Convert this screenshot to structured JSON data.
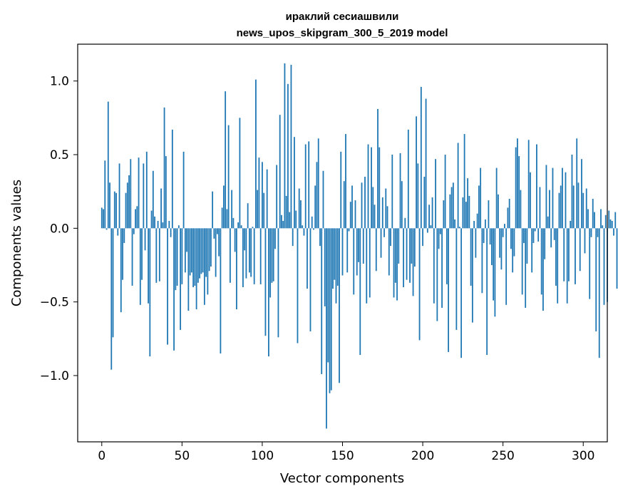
{
  "chart_data": {
    "type": "bar",
    "title": "ираклий сесиашвили",
    "subtitle": "news_upos_skipgram_300_5_2019 model",
    "xlabel": "Vector components",
    "ylabel": "Components values",
    "xlim": [
      -15,
      315
    ],
    "ylim": [
      -1.45,
      1.25
    ],
    "xticks": [
      0,
      50,
      100,
      150,
      200,
      250,
      300
    ],
    "yticks": [
      -1.0,
      -0.5,
      0.0,
      0.5,
      1.0
    ],
    "ytick_labels": [
      "−1.0",
      "−0.5",
      "0.0",
      "0.5",
      "1.0"
    ],
    "bar_color": "#1f77b4",
    "values": [
      0.14,
      0.13,
      0.46,
      -0.01,
      0.86,
      0.31,
      -0.96,
      -0.74,
      0.25,
      0.24,
      -0.05,
      0.44,
      -0.57,
      -0.35,
      -0.1,
      0.24,
      0.31,
      0.36,
      0.47,
      -0.39,
      -0.04,
      0.13,
      0.15,
      0.48,
      -0.52,
      -0.35,
      0.44,
      -0.15,
      0.52,
      -0.51,
      -0.87,
      0.12,
      0.39,
      0.08,
      -0.37,
      0.05,
      -0.36,
      0.27,
      0.04,
      0.82,
      0.49,
      -0.79,
      0.05,
      -0.06,
      0.67,
      -0.83,
      -0.42,
      -0.39,
      0.02,
      -0.69,
      -0.38,
      0.52,
      -0.3,
      -0.16,
      -0.56,
      -0.32,
      -0.3,
      -0.4,
      -0.39,
      -0.55,
      -0.37,
      -0.34,
      -0.31,
      -0.3,
      -0.52,
      -0.33,
      -0.45,
      -0.29,
      -0.26,
      0.25,
      -0.07,
      -0.33,
      -0.04,
      -0.19,
      -0.85,
      0.14,
      0.29,
      0.93,
      0.13,
      0.7,
      -0.37,
      0.26,
      0.07,
      -0.16,
      -0.55,
      0.04,
      0.75,
      0.02,
      -0.4,
      -0.15,
      -0.34,
      0.17,
      -0.3,
      -0.33,
      0.01,
      -0.38,
      1.01,
      0.26,
      0.48,
      -0.38,
      0.45,
      0.24,
      -0.73,
      0.4,
      -0.87,
      -0.47,
      -0.37,
      -0.36,
      -0.14,
      0.43,
      -0.74,
      0.77,
      0.09,
      0.05,
      1.12,
      0.22,
      0.98,
      0.11,
      1.11,
      -0.12,
      0.62,
      0.12,
      -0.78,
      0.27,
      0.19,
      0.02,
      -0.05,
      0.57,
      -0.41,
      0.59,
      -0.7,
      0.08,
      -0.01,
      0.29,
      0.45,
      0.61,
      -0.12,
      -0.99,
      0.39,
      -0.53,
      -1.36,
      -0.91,
      -1.12,
      -1.1,
      -0.41,
      -0.35,
      -0.51,
      -0.39,
      -1.05,
      0.52,
      -0.32,
      0.32,
      0.64,
      -0.3,
      -0.02,
      0.18,
      0.29,
      -0.45,
      0.19,
      -0.32,
      -0.23,
      -0.86,
      0.31,
      -0.24,
      0.35,
      -0.51,
      0.57,
      -0.47,
      0.55,
      0.28,
      0.16,
      -0.29,
      0.81,
      0.55,
      -0.2,
      0.21,
      -0.06,
      0.27,
      0.15,
      -0.32,
      -0.12,
      0.5,
      -0.47,
      -0.37,
      -0.49,
      -0.24,
      0.51,
      0.32,
      -0.4,
      0.07,
      -0.35,
      0.67,
      -0.37,
      -0.24,
      -0.46,
      -0.26,
      0.76,
      0.44,
      -0.76,
      0.96,
      -0.12,
      0.35,
      0.88,
      -0.03,
      0.16,
      0.02,
      0.21,
      -0.51,
      0.47,
      -0.63,
      -0.14,
      -0.04,
      -0.54,
      0.19,
      0.5,
      -0.38,
      -0.84,
      0.23,
      0.28,
      0.31,
      0.06,
      -0.69,
      0.58,
      0.01,
      -0.88,
      0.21,
      0.64,
      0.18,
      0.34,
      0.22,
      -0.39,
      -0.64,
      0.05,
      -0.2,
      0.1,
      0.29,
      0.41,
      -0.44,
      -0.1,
      0.06,
      -0.86,
      0.19,
      -0.11,
      -0.25,
      -0.49,
      -0.6,
      0.41,
      0.23,
      -0.2,
      -0.28,
      -0.06,
      0.03,
      -0.52,
      0.14,
      0.2,
      -0.14,
      -0.3,
      -0.19,
      0.55,
      0.61,
      0.49,
      0.26,
      -0.45,
      -0.1,
      -0.54,
      -0.24,
      0.6,
      0.38,
      -0.3,
      -0.1,
      -0.02,
      0.57,
      -0.09,
      0.28,
      -0.45,
      -0.56,
      -0.21,
      0.43,
      0.08,
      0.26,
      -0.13,
      0.41,
      -0.08,
      -0.39,
      -0.51,
      0.24,
      0.29,
      0.41,
      -0.36,
      0.38,
      -0.51,
      -0.36,
      0.05,
      0.5,
      0.29,
      -0.38,
      0.61,
      0.31,
      -0.29,
      0.47,
      0.24,
      -0.17,
      0.27,
      0.13,
      -0.48,
      -0.06,
      0.2,
      0.11,
      -0.7,
      -0.06,
      -0.88,
      0.13,
      0.02,
      -0.52,
      0.09,
      -0.5,
      0.12,
      0.06,
      0.05,
      -0.05,
      0.11,
      -0.41
    ]
  }
}
